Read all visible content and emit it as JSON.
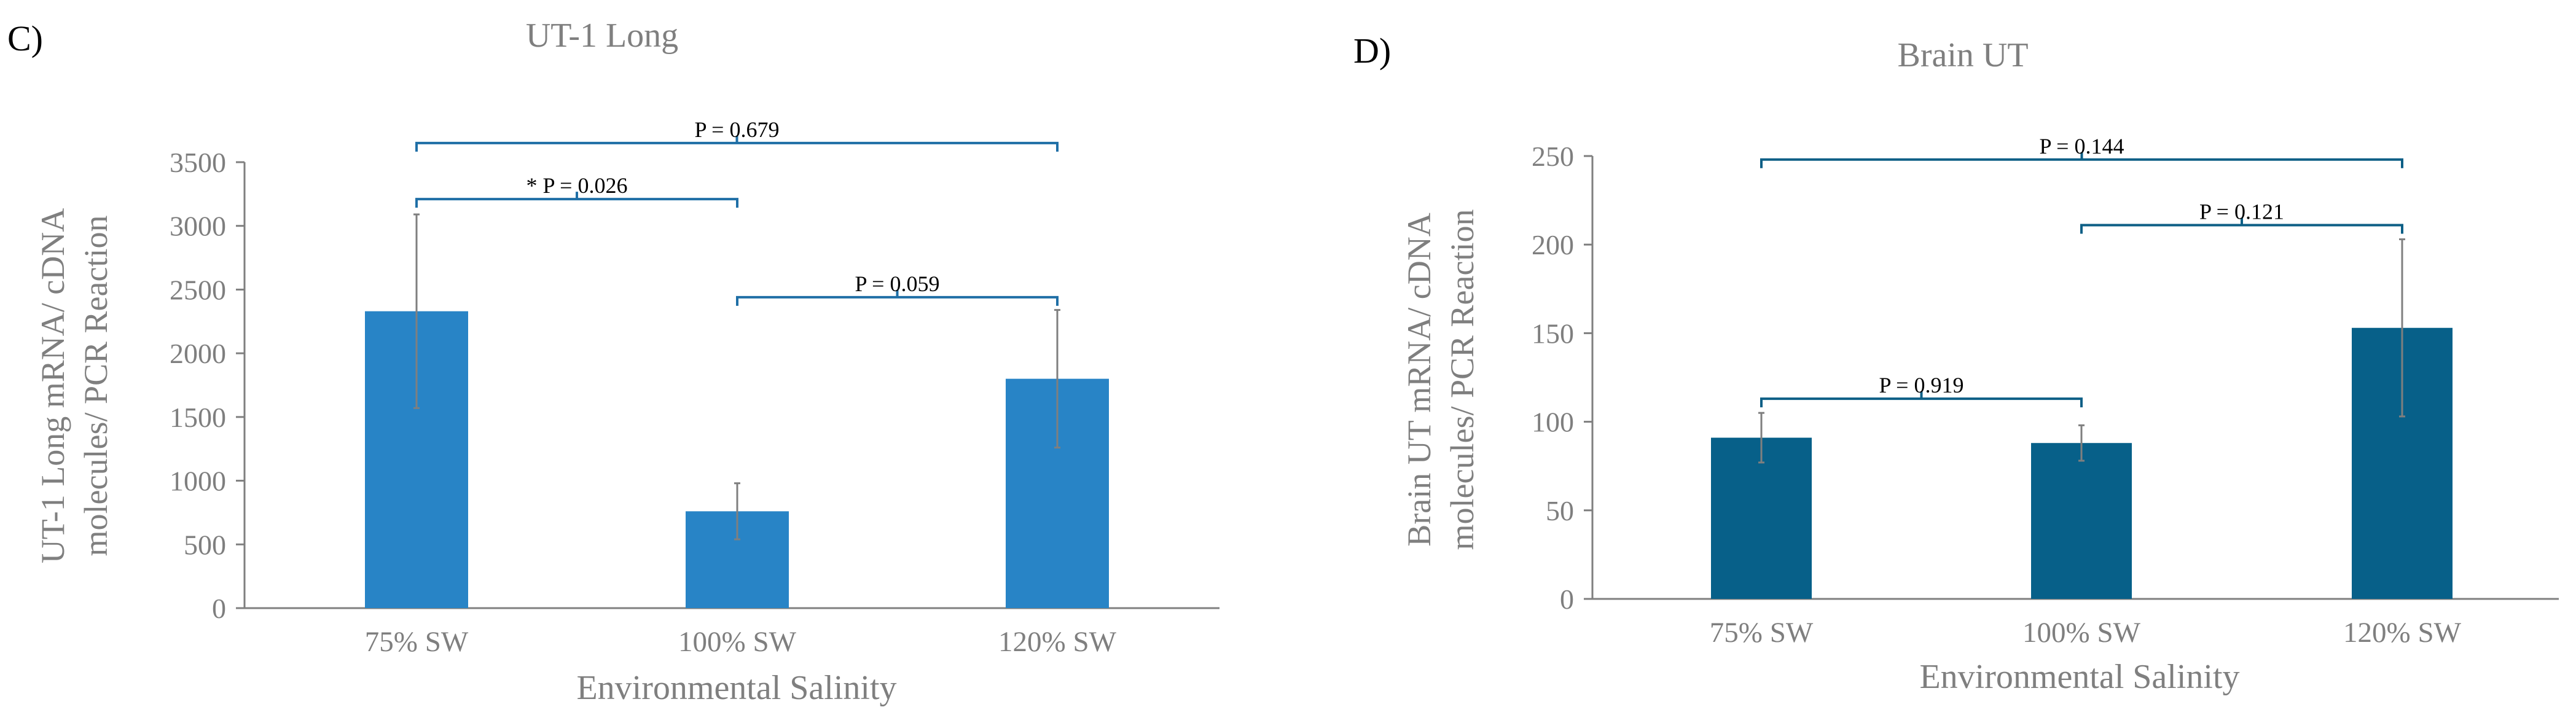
{
  "chart_data": [
    {
      "type": "bar",
      "panel": "C)",
      "title": "UT-1 Long",
      "ylabel_lines": [
        "UT-1 Long mRNA/ cDNA",
        "molecules/  PCR Reaction"
      ],
      "xlabel": "Environmental Salinity",
      "categories": [
        "75% SW",
        "100% SW",
        "120% SW"
      ],
      "values": [
        2330,
        760,
        1800
      ],
      "errors": [
        760,
        220,
        540
      ],
      "ylim": [
        0,
        3500
      ],
      "yticks": [
        0,
        500,
        1000,
        1500,
        2000,
        2500,
        3000,
        3500
      ],
      "bar_color": "#2884c6",
      "bracket_color": "#1f6fa6",
      "error_color": "#7f7f7f",
      "brackets": [
        {
          "from": 0,
          "to": 1,
          "level": 3210,
          "label": "* P = 0.026"
        },
        {
          "from": 1,
          "to": 2,
          "level": 2440,
          "label": "P = 0.059"
        },
        {
          "from": 0,
          "to": 2,
          "level": 3650,
          "label": "P = 0.679"
        }
      ]
    },
    {
      "type": "bar",
      "panel": "D)",
      "title": "Brain UT",
      "ylabel_lines": [
        "Brain UT  mRNA/ cDNA",
        "molecules/  PCR Reaction"
      ],
      "xlabel": "Environmental Salinity",
      "categories": [
        "75% SW",
        "100% SW",
        "120% SW"
      ],
      "values": [
        91,
        88,
        153
      ],
      "errors": [
        14,
        10,
        50
      ],
      "ylim": [
        0,
        250
      ],
      "yticks": [
        0,
        50,
        100,
        150,
        200,
        250
      ],
      "bar_color": "#076089",
      "bracket_color": "#0d5f86",
      "error_color": "#7f7f7f",
      "brackets": [
        {
          "from": 0,
          "to": 1,
          "level": 113,
          "label": "P = 0.919"
        },
        {
          "from": 1,
          "to": 2,
          "level": 211,
          "label": "P = 0.121"
        },
        {
          "from": 0,
          "to": 2,
          "level": 248,
          "label": "P = 0.144"
        }
      ]
    }
  ]
}
